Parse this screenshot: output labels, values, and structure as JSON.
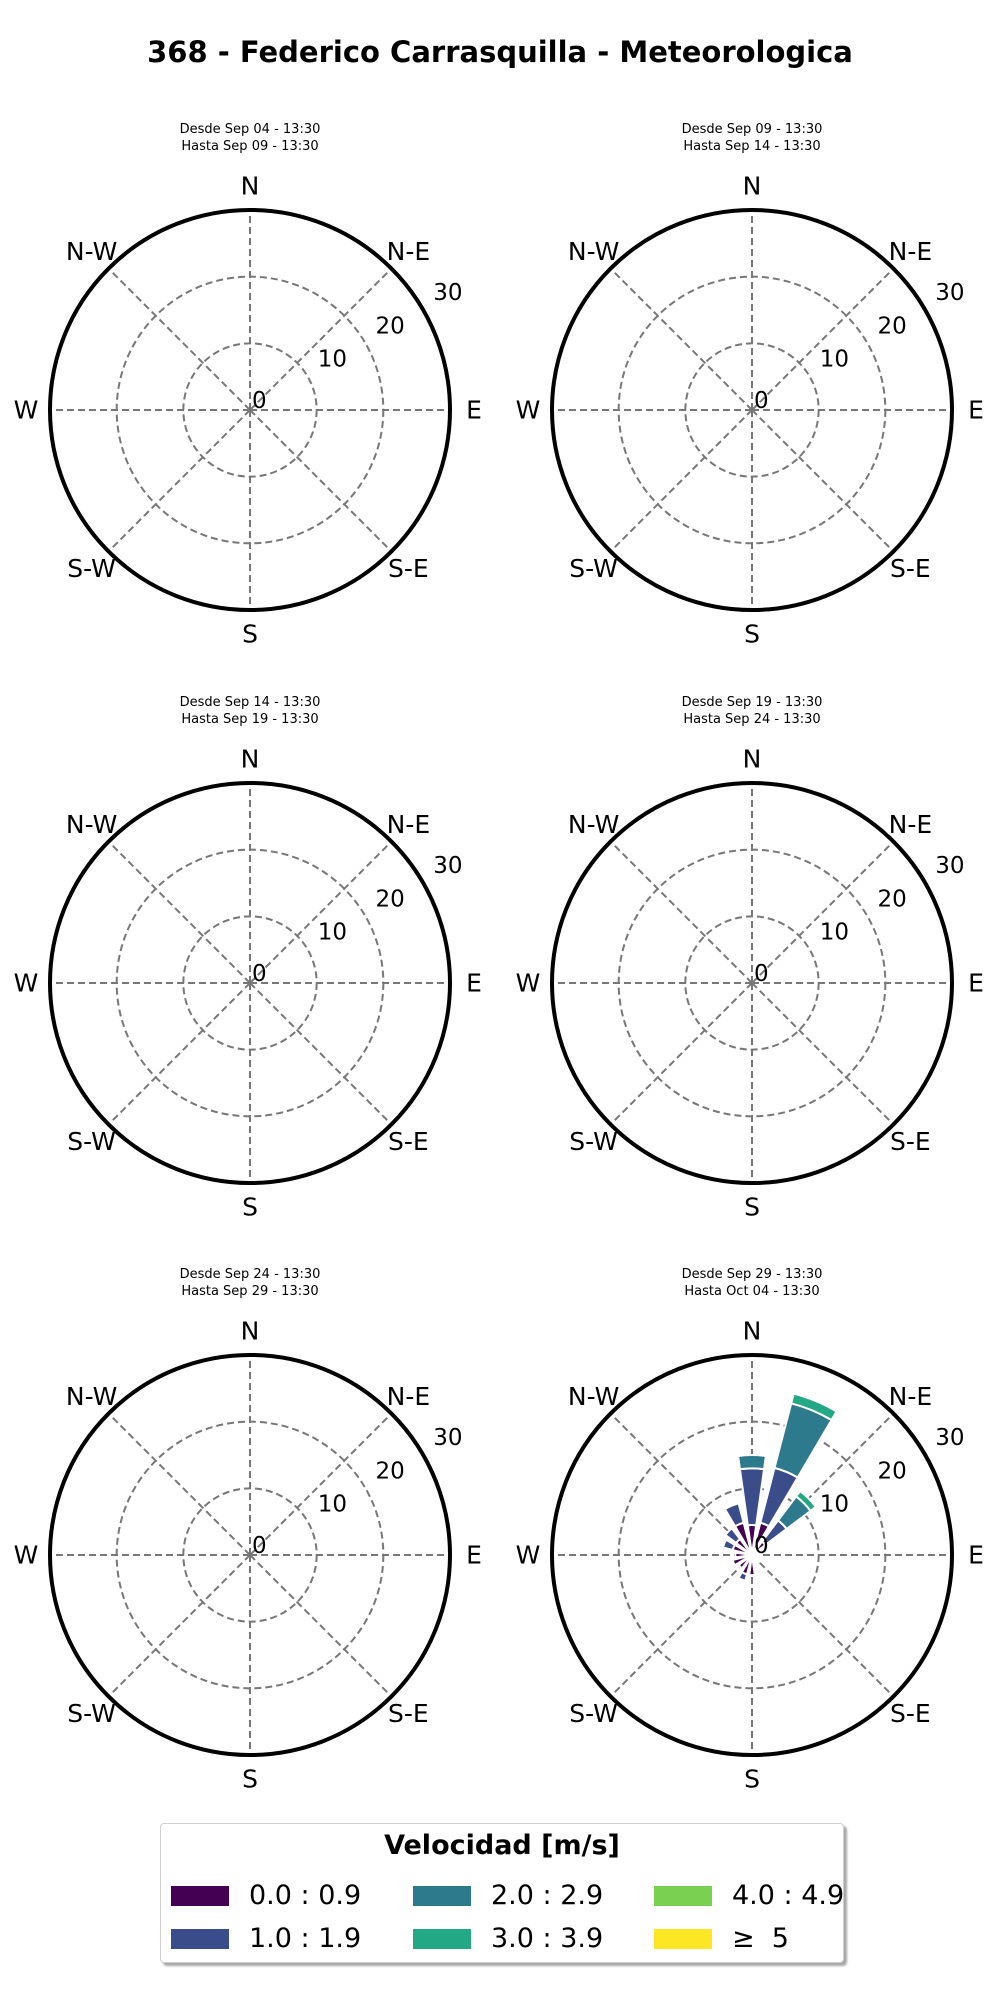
{
  "title": "368 - Federico Carrasquilla - Meteorologica",
  "chart_data": {
    "type": "windrose",
    "directions": [
      "N",
      "N-E",
      "E",
      "S-E",
      "S",
      "S-W",
      "W",
      "N-W"
    ],
    "radial_ticks": [
      0,
      10,
      20,
      30
    ],
    "rmax": 30,
    "panels": [
      {
        "subtitle_from": "Desde Sep 04 - 13:30",
        "subtitle_to": "Hasta Sep 09 - 13:30",
        "sectors": []
      },
      {
        "subtitle_from": "Desde Sep 09 - 13:30",
        "subtitle_to": "Hasta Sep 14 - 13:30",
        "sectors": []
      },
      {
        "subtitle_from": "Desde Sep 14 - 13:30",
        "subtitle_to": "Hasta Sep 19 - 13:30",
        "sectors": []
      },
      {
        "subtitle_from": "Desde Sep 19 - 13:30",
        "subtitle_to": "Hasta Sep 24 - 13:30",
        "sectors": []
      },
      {
        "subtitle_from": "Desde Sep 24 - 13:30",
        "subtitle_to": "Hasta Sep 29 - 13:30",
        "sectors": []
      },
      {
        "subtitle_from": "Desde Sep 29 - 13:30",
        "subtitle_to": "Hasta Oct 04 - 13:30",
        "sectors": [
          {
            "direction_deg": 0,
            "values": [
              4.5,
              8.5,
              2,
              0,
              0,
              0
            ]
          },
          {
            "direction_deg": 22.5,
            "values": [
              5,
              8.5,
              10,
              1.5,
              0,
              0
            ]
          },
          {
            "direction_deg": 45,
            "values": [
              2.5,
              4,
              4.5,
              1,
              0,
              0
            ]
          },
          {
            "direction_deg": 67.5,
            "values": [
              1,
              0.5,
              0,
              0,
              0,
              0
            ]
          },
          {
            "direction_deg": 90,
            "values": [
              1,
              0,
              0,
              0,
              0,
              0
            ]
          },
          {
            "direction_deg": 112.5,
            "values": [
              1,
              0,
              0,
              0,
              0,
              0
            ]
          },
          {
            "direction_deg": 135,
            "values": [
              1,
              0,
              0,
              0,
              0,
              0
            ]
          },
          {
            "direction_deg": 157.5,
            "values": [
              1,
              0,
              0,
              0,
              0,
              0
            ]
          },
          {
            "direction_deg": 180,
            "values": [
              3,
              0,
              0,
              0,
              0,
              0
            ]
          },
          {
            "direction_deg": 202.5,
            "values": [
              3,
              1,
              0,
              0,
              0,
              0
            ]
          },
          {
            "direction_deg": 225,
            "values": [
              2.5,
              0,
              0,
              0,
              0,
              0
            ]
          },
          {
            "direction_deg": 247.5,
            "values": [
              3,
              0,
              0,
              0,
              0,
              0
            ]
          },
          {
            "direction_deg": 270,
            "values": [
              2.5,
              0,
              0,
              0,
              0,
              0
            ]
          },
          {
            "direction_deg": 292.5,
            "values": [
              3,
              1.5,
              0,
              0,
              0,
              0
            ]
          },
          {
            "direction_deg": 315,
            "values": [
              3,
              2,
              0,
              0,
              0,
              0
            ]
          },
          {
            "direction_deg": 337.5,
            "values": [
              5,
              3,
              0,
              0,
              0,
              0
            ]
          }
        ]
      }
    ],
    "legend": {
      "title": "Velocidad [m/s]",
      "placement": "bottom-center",
      "bins": [
        {
          "label": "0.0 : 0.9",
          "color": "#440154"
        },
        {
          "label": "1.0 : 1.9",
          "color": "#3b4c8a"
        },
        {
          "label": "2.0 : 2.9",
          "color": "#2c7a8c"
        },
        {
          "label": "3.0 : 3.9",
          "color": "#22a884"
        },
        {
          "label": "4.0 : 4.9",
          "color": "#7ad151"
        },
        {
          "label": "≥  5",
          "color": "#fde725"
        }
      ]
    }
  }
}
